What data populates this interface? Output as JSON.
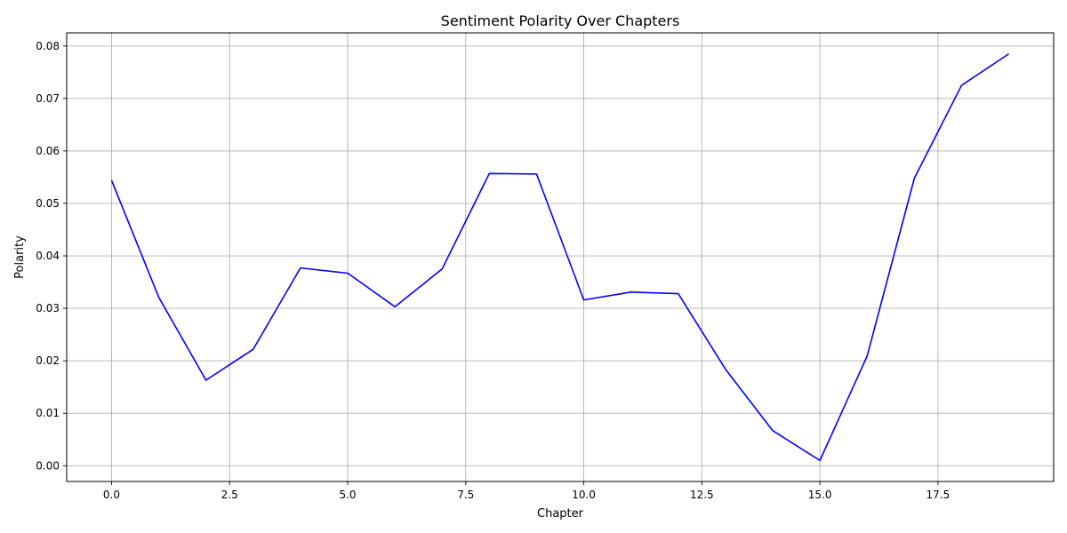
{
  "chart_data": {
    "type": "line",
    "title": "Sentiment Polarity Over Chapters",
    "xlabel": "Chapter",
    "ylabel": "Polarity",
    "xlim": [
      -0.95,
      19.95
    ],
    "ylim": [
      -0.003,
      0.0825
    ],
    "xticks": [
      0.0,
      2.5,
      5.0,
      7.5,
      10.0,
      12.5,
      15.0,
      17.5
    ],
    "xtick_labels": [
      "0.0",
      "2.5",
      "5.0",
      "7.5",
      "10.0",
      "12.5",
      "15.0",
      "17.5"
    ],
    "yticks": [
      0.0,
      0.01,
      0.02,
      0.03,
      0.04,
      0.05,
      0.06,
      0.07,
      0.08
    ],
    "ytick_labels": [
      "0.00",
      "0.01",
      "0.02",
      "0.03",
      "0.04",
      "0.05",
      "0.06",
      "0.07",
      "0.08"
    ],
    "grid": true,
    "series": [
      {
        "color": "#0000ff",
        "x": [
          0,
          1,
          2,
          3,
          4,
          5,
          6,
          7,
          8,
          9,
          10,
          11,
          12,
          13,
          14,
          15,
          16,
          17,
          18,
          19
        ],
        "y": [
          0.0544,
          0.0321,
          0.0163,
          0.0222,
          0.0377,
          0.0367,
          0.0303,
          0.0375,
          0.0557,
          0.0556,
          0.0316,
          0.0331,
          0.0328,
          0.0184,
          0.0067,
          0.001,
          0.0209,
          0.0548,
          0.0725,
          0.0785
        ]
      }
    ]
  }
}
